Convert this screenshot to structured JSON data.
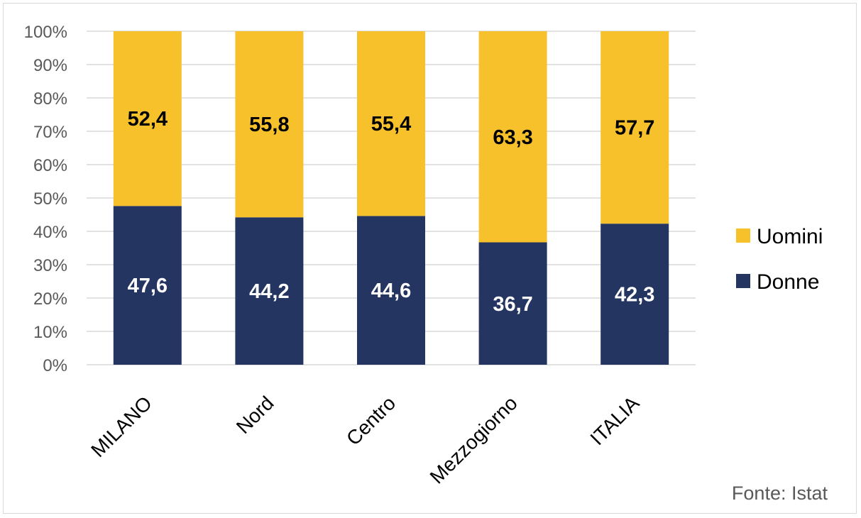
{
  "chart_data": {
    "type": "bar",
    "stacked": true,
    "percent_stacked": true,
    "categories": [
      "MILANO",
      "Nord",
      "Centro",
      "Mezzogiorno",
      "ITALIA"
    ],
    "series": [
      {
        "name": "Donne",
        "values": [
          47.6,
          44.2,
          44.6,
          36.7,
          42.3
        ],
        "labels": [
          "47,6",
          "44,2",
          "44,6",
          "36,7",
          "42,3"
        ],
        "color": "#253561",
        "label_color": "#ffffff"
      },
      {
        "name": "Uomini",
        "values": [
          52.4,
          55.8,
          55.4,
          63.3,
          57.7
        ],
        "labels": [
          "52,4",
          "55,8",
          "55,4",
          "63,3",
          "57,7"
        ],
        "color": "#F7C12B",
        "label_color": "#000000"
      }
    ],
    "ylim": [
      0,
      100
    ],
    "yticks": [
      "0%",
      "10%",
      "20%",
      "30%",
      "40%",
      "50%",
      "60%",
      "70%",
      "80%",
      "90%",
      "100%"
    ],
    "grid": true,
    "legend_position": "right",
    "legend_order": [
      "Uomini",
      "Donne"
    ],
    "source": "Fonte: Istat"
  }
}
